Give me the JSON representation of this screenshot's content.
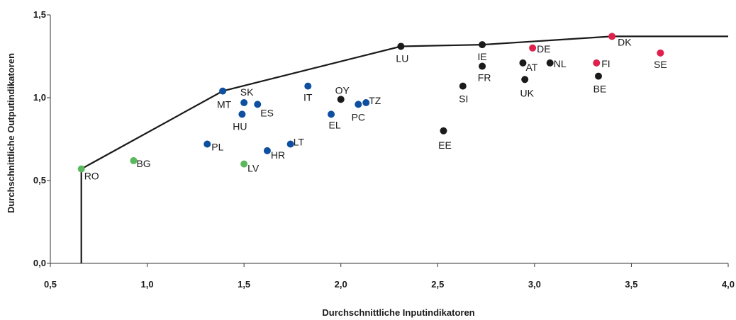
{
  "chart_data": {
    "type": "scatter",
    "title": "",
    "xlabel": "Durchschnittliche Inputindikatoren",
    "ylabel": "Durchschnittliche Outputindikatoren",
    "xlim": [
      0.5,
      4.0
    ],
    "ylim": [
      0.0,
      1.5
    ],
    "x_ticks": [
      "0,5",
      "1,0",
      "1,5",
      "2,0",
      "2,5",
      "3,0",
      "3,5",
      "4,0"
    ],
    "y_ticks": [
      "0,0",
      "0,5",
      "1,0",
      "1,5"
    ],
    "grid": false,
    "legend": "none",
    "colors": {
      "green": "#5cb85c",
      "blue": "#0e4fa0",
      "black": "#1a1a1a",
      "red": "#e0204c",
      "frontier": "#1a1a1a"
    },
    "points": [
      {
        "label": "RO",
        "x": 0.66,
        "y": 0.57,
        "color": "green"
      },
      {
        "label": "BG",
        "x": 0.93,
        "y": 0.62,
        "color": "green"
      },
      {
        "label": "LV",
        "x": 1.5,
        "y": 0.6,
        "color": "green"
      },
      {
        "label": "PL",
        "x": 1.31,
        "y": 0.72,
        "color": "blue"
      },
      {
        "label": "MT",
        "x": 1.39,
        "y": 1.04,
        "color": "blue"
      },
      {
        "label": "SK",
        "x": 1.5,
        "y": 0.97,
        "color": "blue"
      },
      {
        "label": "ES",
        "x": 1.57,
        "y": 0.96,
        "color": "blue"
      },
      {
        "label": "HU",
        "x": 1.49,
        "y": 0.9,
        "color": "blue"
      },
      {
        "label": "HR",
        "x": 1.62,
        "y": 0.68,
        "color": "blue"
      },
      {
        "label": "LT",
        "x": 1.74,
        "y": 0.72,
        "color": "blue"
      },
      {
        "label": "IT",
        "x": 1.83,
        "y": 1.07,
        "color": "blue"
      },
      {
        "label": "EL",
        "x": 1.95,
        "y": 0.9,
        "color": "blue"
      },
      {
        "label": "PC",
        "x": 2.09,
        "y": 0.96,
        "color": "blue"
      },
      {
        "label": "TZ",
        "x": 2.13,
        "y": 0.97,
        "color": "blue"
      },
      {
        "label": "OY",
        "x": 2.0,
        "y": 0.99,
        "color": "black"
      },
      {
        "label": "LU",
        "x": 2.31,
        "y": 1.31,
        "color": "black"
      },
      {
        "label": "EE",
        "x": 2.53,
        "y": 0.8,
        "color": "black"
      },
      {
        "label": "SI",
        "x": 2.63,
        "y": 1.07,
        "color": "black"
      },
      {
        "label": "IE",
        "x": 2.73,
        "y": 1.32,
        "color": "black"
      },
      {
        "label": "FR",
        "x": 2.73,
        "y": 1.19,
        "color": "black"
      },
      {
        "label": "AT",
        "x": 2.94,
        "y": 1.21,
        "color": "black"
      },
      {
        "label": "UK",
        "x": 2.95,
        "y": 1.11,
        "color": "black"
      },
      {
        "label": "NL",
        "x": 3.08,
        "y": 1.21,
        "color": "black"
      },
      {
        "label": "BE",
        "x": 3.33,
        "y": 1.13,
        "color": "black"
      },
      {
        "label": "DE",
        "x": 2.99,
        "y": 1.3,
        "color": "red"
      },
      {
        "label": "FI",
        "x": 3.32,
        "y": 1.21,
        "color": "red"
      },
      {
        "label": "DK",
        "x": 3.4,
        "y": 1.37,
        "color": "red"
      },
      {
        "label": "SE",
        "x": 3.65,
        "y": 1.27,
        "color": "red"
      }
    ],
    "frontier": [
      [
        0.66,
        0.0
      ],
      [
        0.66,
        0.57
      ],
      [
        1.39,
        1.04
      ],
      [
        2.31,
        1.31
      ],
      [
        2.73,
        1.32
      ],
      [
        3.4,
        1.37
      ],
      [
        4.0,
        1.37
      ]
    ]
  }
}
